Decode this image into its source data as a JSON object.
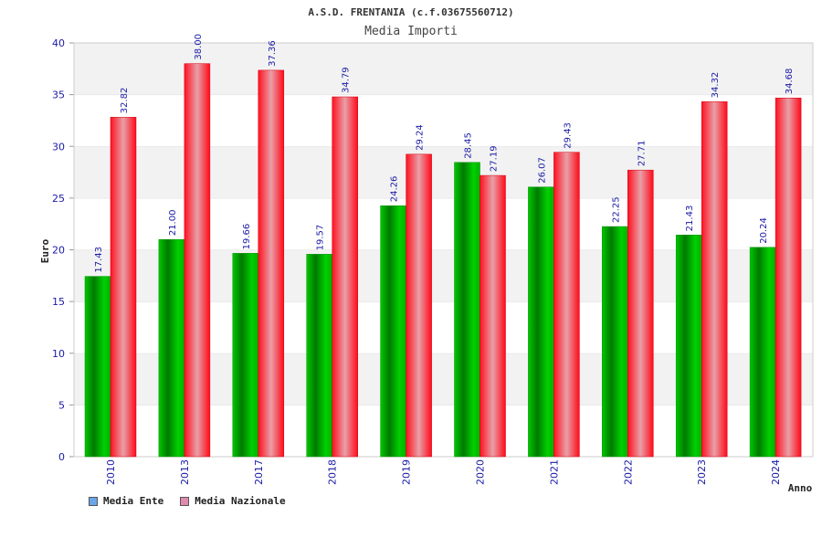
{
  "colors": {
    "ente": "#00b000",
    "nazionale": "#f01020",
    "legend_ente": "#6aa6e8",
    "legend_nazionale": "#e08ab0",
    "grid_band": "#f2f2f2",
    "tick_text": "#1a1aa6"
  },
  "chart_data": {
    "type": "bar",
    "title": "A.S.D. FRENTANIA (c.f.03675560712)",
    "subtitle": "Media Importi",
    "xlabel": "Anno",
    "ylabel": "Euro",
    "ylim": [
      0,
      40
    ],
    "yticks": [
      0,
      5,
      10,
      15,
      20,
      25,
      30,
      35,
      40
    ],
    "grid": true,
    "legend_position": "bottom-left",
    "categories": [
      "2010",
      "2013",
      "2017",
      "2018",
      "2019",
      "2020",
      "2021",
      "2022",
      "2023",
      "2024"
    ],
    "series": [
      {
        "name": "Media Ente",
        "values": [
          17.43,
          21.0,
          19.66,
          19.57,
          24.26,
          28.45,
          26.07,
          22.25,
          21.43,
          20.24
        ],
        "labels": [
          "17.43",
          "21.00",
          "19.66",
          "19.57",
          "24.26",
          "28.45",
          "26.07",
          "22.25",
          "21.43",
          "20.24"
        ]
      },
      {
        "name": "Media Nazionale",
        "values": [
          32.82,
          38.0,
          37.36,
          34.79,
          29.24,
          27.19,
          29.43,
          27.71,
          34.32,
          34.68
        ],
        "labels": [
          "32.82",
          "38.00",
          "37.36",
          "34.79",
          "29.24",
          "27.19",
          "29.43",
          "27.71",
          "34.32",
          "34.68"
        ]
      }
    ]
  }
}
